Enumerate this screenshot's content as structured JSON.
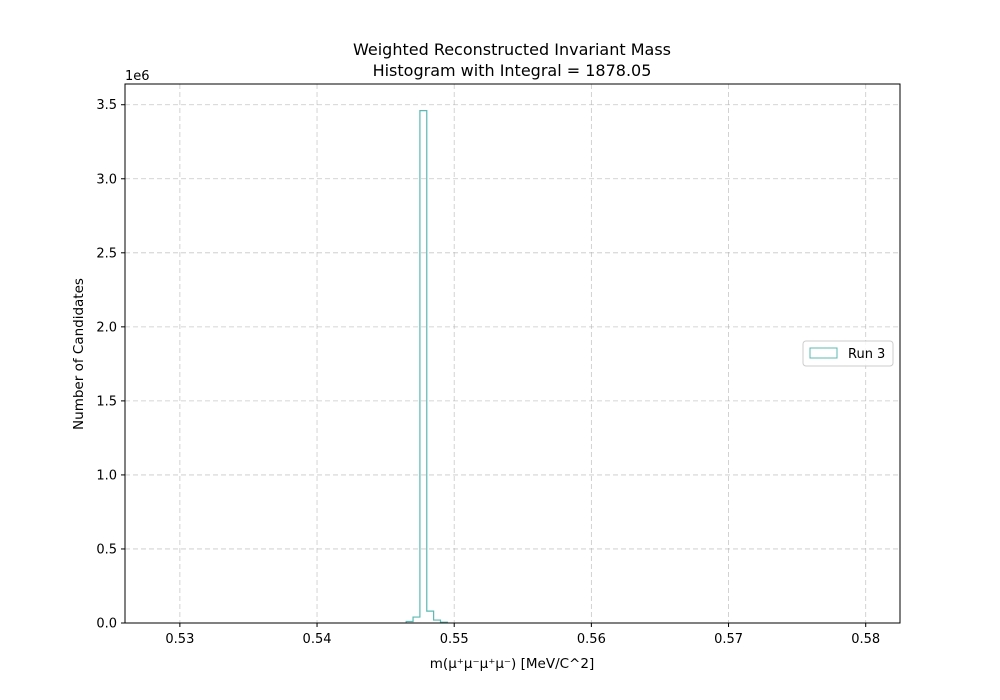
{
  "chart_data": {
    "type": "histogram",
    "title": "Weighted Reconstructed Invariant Mass",
    "subtitle": "Histogram with Integral = 1878.05",
    "xlabel": "m(μ⁺μ⁻μ⁺μ⁻) [MeV/C^2]",
    "ylabel": "Number of Candidates",
    "y_offset_label": "1e6",
    "xlim": [
      0.526,
      0.5825
    ],
    "ylim": [
      0,
      3.64
    ],
    "x_ticks": [
      0.53,
      0.54,
      0.55,
      0.56,
      0.57,
      0.58
    ],
    "x_tick_labels": [
      "0.53",
      "0.54",
      "0.55",
      "0.56",
      "0.57",
      "0.58"
    ],
    "y_ticks": [
      0.0,
      0.5,
      1.0,
      1.5,
      2.0,
      2.5,
      3.0,
      3.5
    ],
    "y_tick_labels": [
      "0.0",
      "0.5",
      "1.0",
      "1.5",
      "2.0",
      "2.5",
      "3.0",
      "3.5"
    ],
    "grid": true,
    "legend_position": "center-right",
    "series": [
      {
        "name": "Run 3",
        "style": "step",
        "color": "#5cb8b2",
        "bins": [
          {
            "x0": 0.5465,
            "x1": 0.547,
            "y": 0.01
          },
          {
            "x0": 0.547,
            "x1": 0.5475,
            "y": 0.04
          },
          {
            "x0": 0.5475,
            "x1": 0.548,
            "y": 3.46
          },
          {
            "x0": 0.548,
            "x1": 0.5485,
            "y": 0.08
          },
          {
            "x0": 0.5485,
            "x1": 0.549,
            "y": 0.02
          },
          {
            "x0": 0.549,
            "x1": 0.5495,
            "y": 0.005
          }
        ]
      }
    ]
  }
}
